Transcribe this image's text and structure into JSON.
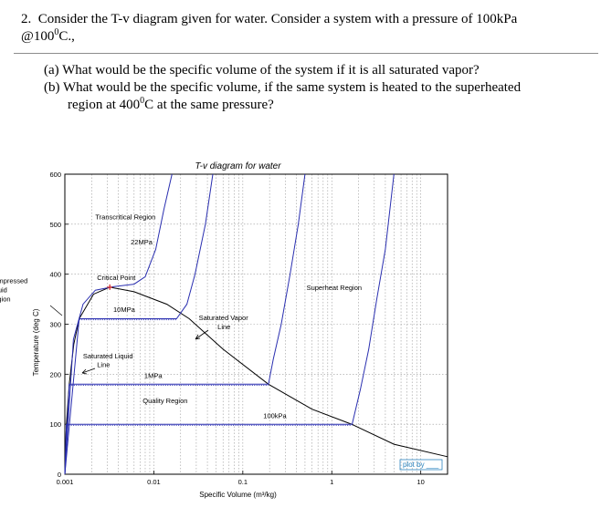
{
  "question": {
    "number": "2.",
    "line1": "Consider the T-v diagram given for water. Consider a system with a pressure of 100kPa",
    "line2_pre": "@100",
    "line2_sup": "0",
    "line2_post": "C.,",
    "part_a_label": "(a)",
    "part_a": "What would be the specific volume of the system if it is all saturated vapor?",
    "part_b_label": "(b)",
    "part_b_1": "What would be the specific volume, if the same system is heated to the superheated",
    "part_b_2_pre": "region at 400",
    "part_b_2_sup": "0",
    "part_b_2_post": "C at the same pressure?"
  },
  "chart_data": {
    "type": "line",
    "title": "T-v diagram for water",
    "xlabel": "Specific Volume (m³/kg)",
    "ylabel": "Temperature (deg C)",
    "x_scale": "log",
    "xlim": [
      0.001,
      20
    ],
    "ylim": [
      0,
      600
    ],
    "x_ticks": [
      "0.001",
      "0.01",
      "0.1",
      "1",
      "10"
    ],
    "y_ticks": [
      "0",
      "100",
      "200",
      "300",
      "400",
      "500",
      "600"
    ],
    "grid": true,
    "saturation_dome": [
      {
        "v": 0.001,
        "T": 0
      },
      {
        "v": 0.00104,
        "T": 100
      },
      {
        "v": 0.00112,
        "T": 180
      },
      {
        "v": 0.00126,
        "T": 260
      },
      {
        "v": 0.00145,
        "T": 311
      },
      {
        "v": 0.0021,
        "T": 360
      },
      {
        "v": 0.0032,
        "T": 374
      },
      {
        "v": 0.006,
        "T": 365
      },
      {
        "v": 0.014,
        "T": 340
      },
      {
        "v": 0.025,
        "T": 311
      },
      {
        "v": 0.06,
        "T": 250
      },
      {
        "v": 0.194,
        "T": 180
      },
      {
        "v": 0.6,
        "T": 130
      },
      {
        "v": 1.67,
        "T": 100
      },
      {
        "v": 5.0,
        "T": 60
      },
      {
        "v": 20.0,
        "T": 35
      }
    ],
    "isobars": [
      {
        "name": "22MPa",
        "points": [
          {
            "v": 0.001,
            "T": 0
          },
          {
            "v": 0.00125,
            "T": 270
          },
          {
            "v": 0.0016,
            "T": 340
          },
          {
            "v": 0.0022,
            "T": 368
          },
          {
            "v": 0.0035,
            "T": 375
          },
          {
            "v": 0.006,
            "T": 380
          },
          {
            "v": 0.008,
            "T": 395
          },
          {
            "v": 0.0105,
            "T": 450
          },
          {
            "v": 0.013,
            "T": 530
          },
          {
            "v": 0.016,
            "T": 600
          }
        ]
      },
      {
        "name": "10MPa",
        "points": [
          {
            "v": 0.001,
            "T": 0
          },
          {
            "v": 0.00145,
            "T": 311
          },
          {
            "v": 0.018,
            "T": 311
          },
          {
            "v": 0.0235,
            "T": 340
          },
          {
            "v": 0.029,
            "T": 400
          },
          {
            "v": 0.038,
            "T": 500
          },
          {
            "v": 0.046,
            "T": 600
          }
        ]
      },
      {
        "name": "1MPa",
        "points": [
          {
            "v": 0.001,
            "T": 0
          },
          {
            "v": 0.00112,
            "T": 180
          },
          {
            "v": 0.194,
            "T": 180
          },
          {
            "v": 0.22,
            "T": 230
          },
          {
            "v": 0.27,
            "T": 300
          },
          {
            "v": 0.34,
            "T": 400
          },
          {
            "v": 0.42,
            "T": 500
          },
          {
            "v": 0.5,
            "T": 600
          }
        ]
      },
      {
        "name": "100kPa",
        "points": [
          {
            "v": 0.001,
            "T": 0
          },
          {
            "v": 0.00104,
            "T": 100
          },
          {
            "v": 1.69,
            "T": 100
          },
          {
            "v": 2.1,
            "T": 170
          },
          {
            "v": 2.6,
            "T": 250
          },
          {
            "v": 3.2,
            "T": 350
          },
          {
            "v": 4.0,
            "T": 450
          },
          {
            "v": 5.0,
            "T": 600
          }
        ]
      }
    ],
    "annotations": [
      {
        "text": "Transcritical Region",
        "v": 0.0022,
        "T": 510
      },
      {
        "text": "22MPa",
        "v": 0.0055,
        "T": 460
      },
      {
        "text": "Critical Point",
        "v": 0.0023,
        "T": 388
      },
      {
        "text": "Compressed",
        "v": 0.00014,
        "T": 382
      },
      {
        "text": "Liquid",
        "v": 0.00014,
        "T": 364
      },
      {
        "text": "Region",
        "v": 0.00014,
        "T": 346
      },
      {
        "text": "10MPa",
        "v": 0.0035,
        "T": 325
      },
      {
        "text": "Saturated Vapor",
        "v": 0.032,
        "T": 308
      },
      {
        "text": "Line",
        "v": 0.052,
        "T": 290
      },
      {
        "text": "Superheat Region",
        "v": 0.52,
        "T": 368
      },
      {
        "text": "Saturated Liquid",
        "v": 0.0016,
        "T": 232
      },
      {
        "text": "Line",
        "v": 0.0023,
        "T": 214
      },
      {
        "text": "1MPa",
        "v": 0.0078,
        "T": 192
      },
      {
        "text": "Quality Region",
        "v": 0.0075,
        "T": 142
      },
      {
        "text": "100kPa",
        "v": 0.17,
        "T": 112
      }
    ],
    "watermark": "plot by ___"
  },
  "colors": {
    "curve": "#2a2fb0",
    "dome": "#000000",
    "grid": "#9a9a9a",
    "critical_point": "#d42020",
    "watermark": "#2e86c1"
  }
}
